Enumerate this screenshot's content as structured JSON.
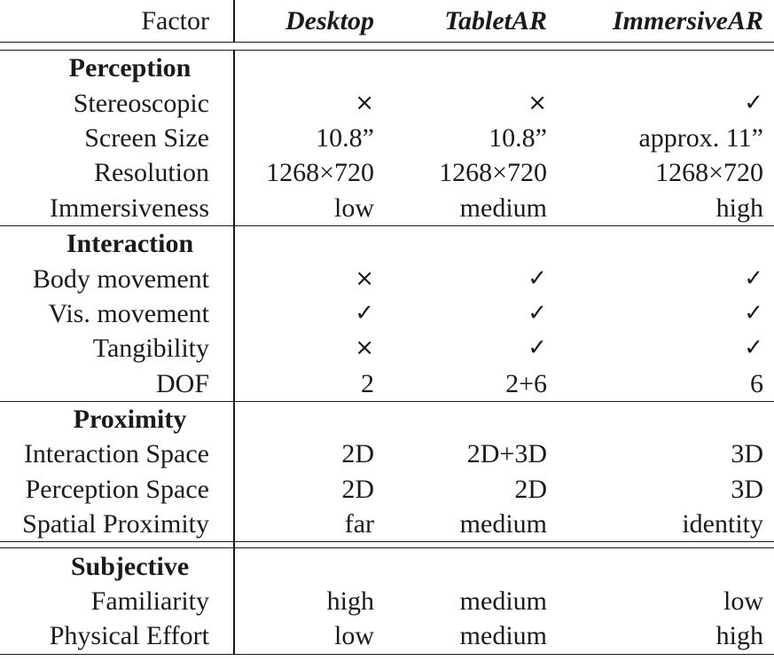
{
  "header": {
    "factor": "Factor",
    "desktop": "Desktop",
    "tablet": "TabletAR",
    "immersive": "ImmersiveAR"
  },
  "sections": [
    {
      "title": "Perception",
      "rows": [
        {
          "factor": "Stereoscopic",
          "desktop": "×",
          "tablet": "×",
          "immersive": "✓"
        },
        {
          "factor": "Screen Size",
          "desktop": "10.8”",
          "tablet": "10.8”",
          "immersive": "approx. 11”"
        },
        {
          "factor": "Resolution",
          "desktop": "1268×720",
          "tablet": "1268×720",
          "immersive": "1268×720"
        },
        {
          "factor": "Immersiveness",
          "desktop": "low",
          "tablet": "medium",
          "immersive": "high"
        }
      ]
    },
    {
      "title": "Interaction",
      "rows": [
        {
          "factor": "Body movement",
          "desktop": "×",
          "tablet": "✓",
          "immersive": "✓"
        },
        {
          "factor": "Vis. movement",
          "desktop": "✓",
          "tablet": "✓",
          "immersive": "✓"
        },
        {
          "factor": "Tangibility",
          "desktop": "×",
          "tablet": "✓",
          "immersive": "✓"
        },
        {
          "factor": "DOF",
          "desktop": "2",
          "tablet": "2+6",
          "immersive": "6"
        }
      ]
    },
    {
      "title": "Proximity",
      "rows": [
        {
          "factor": "Interaction Space",
          "desktop": "2D",
          "tablet": "2D+3D",
          "immersive": "3D"
        },
        {
          "factor": "Perception Space",
          "desktop": "2D",
          "tablet": "2D",
          "immersive": "3D"
        },
        {
          "factor": "Spatial Proximity",
          "desktop": "far",
          "tablet": "medium",
          "immersive": "identity"
        }
      ]
    },
    {
      "title": "Subjective",
      "rows": [
        {
          "factor": "Familiarity",
          "desktop": "high",
          "tablet": "medium",
          "immersive": "low"
        },
        {
          "factor": "Physical Effort",
          "desktop": "low",
          "tablet": "medium",
          "immersive": "high"
        }
      ]
    }
  ]
}
